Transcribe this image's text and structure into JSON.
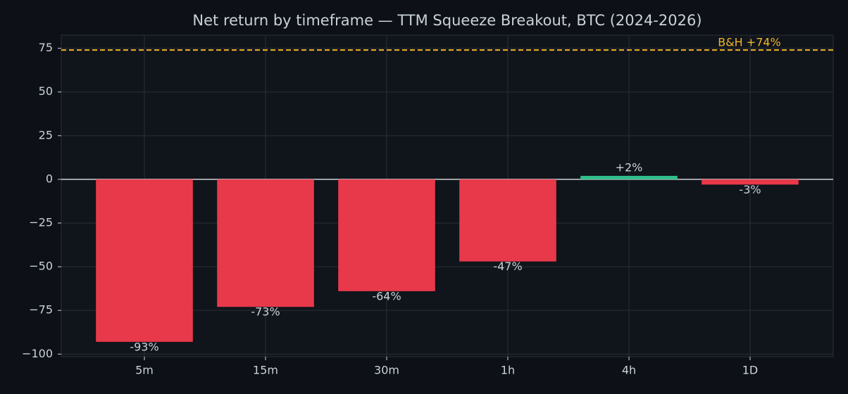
{
  "chart_data": {
    "type": "bar",
    "title": "Net return by timeframe — TTM Squeeze Breakout, BTC (2024-2026)",
    "categories": [
      "5m",
      "15m",
      "30m",
      "1h",
      "4h",
      "1D"
    ],
    "values": [
      -93,
      -73,
      -64,
      -47,
      2,
      -3
    ],
    "value_labels": [
      "-93%",
      "-73%",
      "-64%",
      "-47%",
      "+2%",
      "-3%"
    ],
    "colors": [
      "#e8394a",
      "#e8394a",
      "#e8394a",
      "#e8394a",
      "#2fbf8a",
      "#e8394a"
    ],
    "ylim": [
      -101.5,
      82.5
    ],
    "yticks": [
      {
        "value": -100,
        "label": "−100"
      },
      {
        "value": -75,
        "label": "−75"
      },
      {
        "value": -50,
        "label": "−50"
      },
      {
        "value": -25,
        "label": "−25"
      },
      0,
      25,
      50,
      75
    ],
    "grid": true,
    "reference_line": {
      "value": 74,
      "label": "B&H +74%",
      "color": "#f0b429"
    }
  }
}
